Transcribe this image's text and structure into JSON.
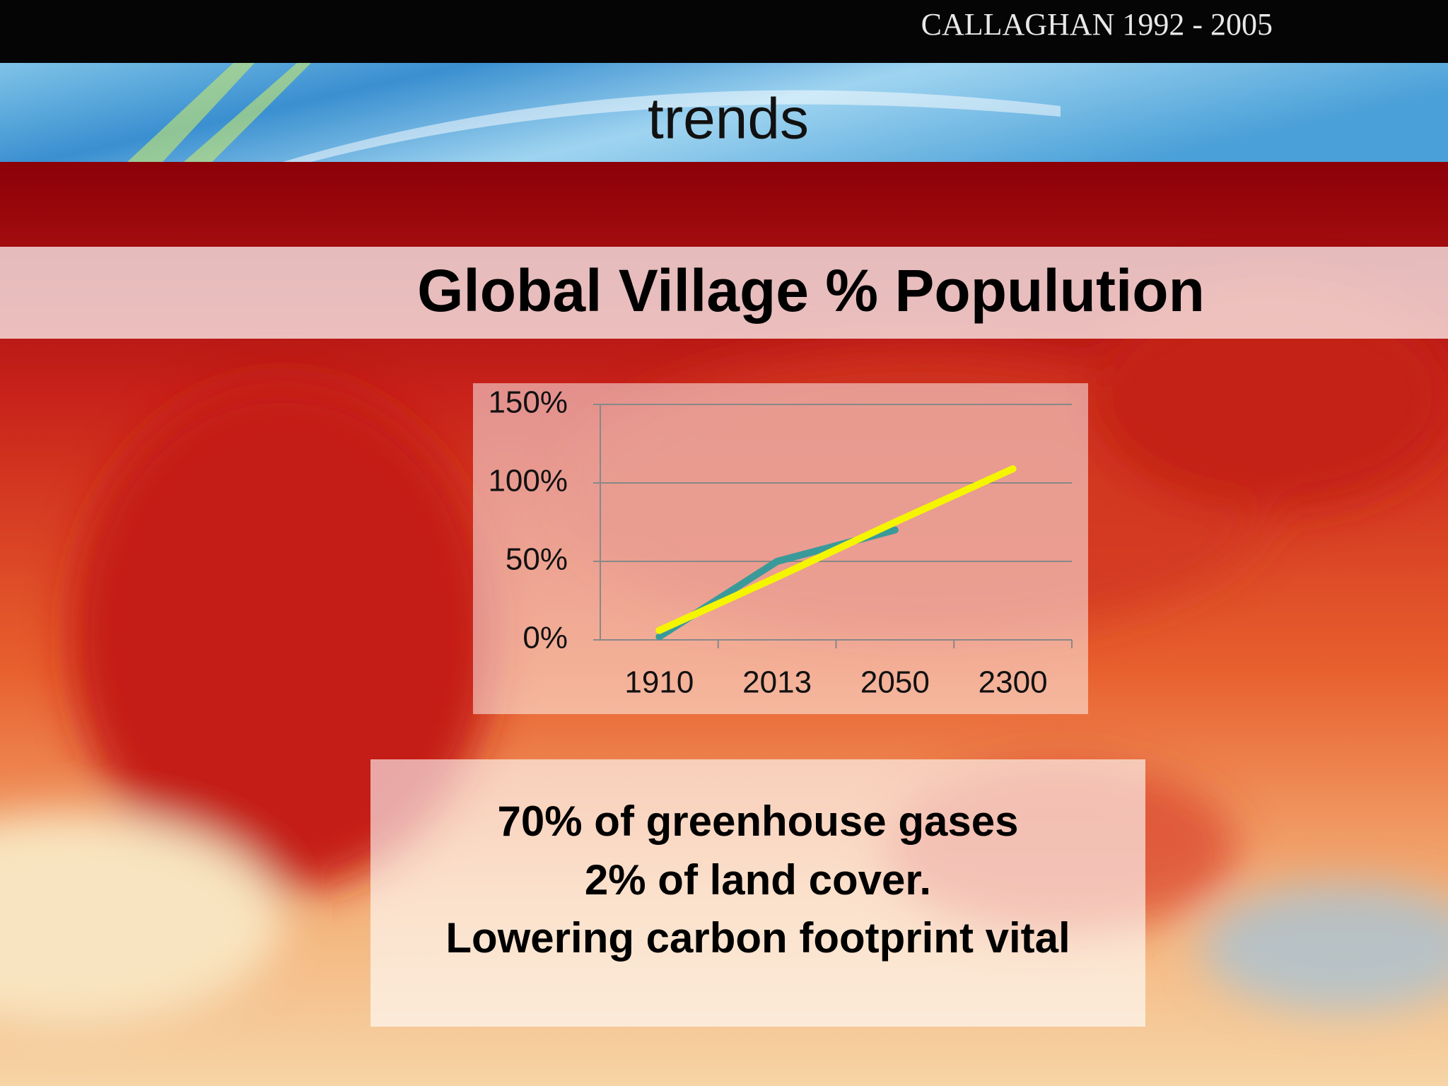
{
  "header": {
    "brand": "CALLAGHAN 1992 - 2005",
    "section": "trends"
  },
  "slide_title": "Global Village % Populution",
  "chart_data": {
    "type": "line",
    "categories": [
      "1910",
      "2013",
      "2050",
      "2300"
    ],
    "series": [
      {
        "color": "#3a9a9a",
        "values": [
          2,
          50,
          70,
          null
        ]
      },
      {
        "color": "#f5f500",
        "values": [
          6,
          40,
          75,
          109
        ]
      }
    ],
    "ylim": [
      0,
      150
    ],
    "yticks": [
      {
        "value": 0,
        "label": "0%"
      },
      {
        "value": 50,
        "label": "50%"
      },
      {
        "value": 100,
        "label": "100%"
      },
      {
        "value": 150,
        "label": "150%"
      }
    ],
    "grid": true
  },
  "text_box": {
    "lines": [
      "70% of greenhouse gases",
      "2% of land cover.",
      "Lowering carbon footprint vital"
    ]
  }
}
